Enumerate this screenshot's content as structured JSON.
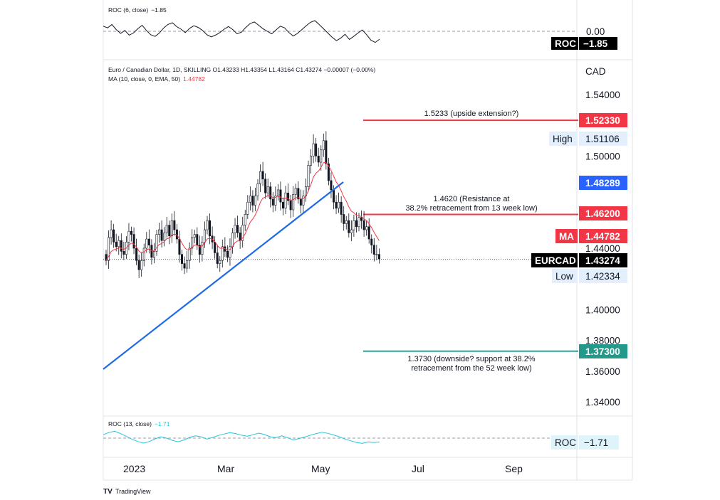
{
  "chart_data": {
    "type": "candlestick",
    "symbol": "EURCAD",
    "legend": {
      "title": "Euro / Canadian Dollar, 1D, SKILLING  O1.43233  H1.43354  L1.43164  C1.43274  −0.00007 (−0.00%)",
      "ma_label": "MA (10, close, 0, EMA, 50)",
      "ma_value": "1.44782"
    },
    "price_axis": {
      "unit": "CAD",
      "ylim": [
        1.32,
        1.56
      ],
      "ticks": [
        "1.54000",
        "1.50000",
        "1.44000",
        "1.40000",
        "1.38000",
        "1.36000",
        "1.34000"
      ]
    },
    "date_axis": {
      "labels": [
        "2023",
        "Mar",
        "May",
        "Jul",
        "Sep"
      ]
    },
    "candles_close_path": [
      1.432,
      1.447,
      1.452,
      1.444,
      1.441,
      1.445,
      1.438,
      1.436,
      1.444,
      1.451,
      1.449,
      1.44,
      1.432,
      1.426,
      1.432,
      1.44,
      1.446,
      1.442,
      1.434,
      1.438,
      1.449,
      1.452,
      1.445,
      1.45,
      1.455,
      1.448,
      1.458,
      1.452,
      1.446,
      1.436,
      1.43,
      1.427,
      1.432,
      1.44,
      1.447,
      1.449,
      1.442,
      1.436,
      1.444,
      1.452,
      1.458,
      1.448,
      1.444,
      1.437,
      1.43,
      1.432,
      1.441,
      1.438,
      1.434,
      1.441,
      1.45,
      1.455,
      1.45,
      1.445,
      1.455,
      1.462,
      1.47,
      1.474,
      1.468,
      1.474,
      1.482,
      1.49,
      1.485,
      1.476,
      1.48,
      1.472,
      1.468,
      1.474,
      1.478,
      1.47,
      1.466,
      1.476,
      1.471,
      1.465,
      1.475,
      1.479,
      1.472,
      1.468,
      1.474,
      1.48,
      1.494,
      1.5,
      1.508,
      1.5,
      1.496,
      1.504,
      1.51,
      1.495,
      1.484,
      1.478,
      1.47,
      1.466,
      1.47,
      1.462,
      1.456,
      1.458,
      1.45,
      1.452,
      1.458,
      1.454,
      1.46,
      1.458,
      1.452,
      1.454,
      1.446,
      1.442,
      1.436,
      1.436,
      1.433
    ],
    "ma": {
      "name": "MA",
      "tag": "1.44782"
    },
    "trendline": {
      "from": [
        "2022-12-19",
        1.36
      ],
      "to": [
        "2023-05-15",
        1.484
      ]
    },
    "horizontal_levels": [
      {
        "price": 1.5233,
        "tag": "1.52330",
        "label": "1.5233 (upside extension?)",
        "color": "#f23645"
      },
      {
        "price": 1.462,
        "tag": "1.46200",
        "label_line1": "1.4620 (Resistance at",
        "label_line2": "38.2% retracement from 13 week low)",
        "color": "#f23645"
      },
      {
        "price": 1.373,
        "tag": "1.37300",
        "label_line1": "1.3730 (downside? support at 38.2%",
        "label_line2": "retracement from the 52 week low)",
        "color": "#26a69a"
      }
    ],
    "price_tags": {
      "high_label": "High",
      "high_value": "1.51106",
      "blue_value": "1.48289",
      "ma_label": "MA",
      "ma_value": "1.44782",
      "last_label": "EURCAD",
      "last_value": "1.43274",
      "low_label": "Low",
      "low_value": "1.42334"
    },
    "roc_top": {
      "legend": "ROC (6, close)",
      "legend_value": "−1.85",
      "zero_label": "0.00",
      "tag_label": "ROC",
      "tag_value": "−1.85",
      "values": [
        1.2,
        0.8,
        1.6,
        0.4,
        -0.5,
        0.2,
        -0.9,
        -0.4,
        0.6,
        1.4,
        0.2,
        -0.8,
        -1.2,
        -0.4,
        0.8,
        1.6,
        2.0,
        1.1,
        0.5,
        -0.3,
        0.7,
        1.3,
        0.9,
        0.2,
        -0.8,
        -1.3,
        -0.9,
        -0.3,
        0.5,
        1.1,
        0.4,
        -0.6,
        -0.2,
        0.9,
        1.8,
        2.2,
        1.4,
        0.6,
        0.0,
        -0.6,
        0.3,
        1.2,
        0.8,
        -0.3,
        -1.1,
        -0.5,
        0.4,
        1.3,
        2.1,
        2.5,
        1.6,
        0.6,
        -0.4,
        -1.4,
        -2.2,
        -1.6,
        -0.7,
        -1.9,
        -1.2,
        -0.4,
        0.3,
        -0.8,
        -2.1,
        -2.6,
        -1.85
      ]
    },
    "roc_bottom": {
      "legend": "ROC (13, close)",
      "legend_value": "−1.71",
      "tag_label": "ROC",
      "tag_value": "−1.71",
      "values": [
        1.5,
        2.5,
        3.0,
        2.0,
        0.8,
        -0.5,
        -1.5,
        -2.2,
        -1.5,
        -0.3,
        0.6,
        0.0,
        -1.0,
        -1.6,
        -0.8,
        0.3,
        1.0,
        0.6,
        -0.4,
        0.3,
        1.2,
        1.8,
        2.4,
        2.0,
        1.3,
        0.8,
        1.5,
        2.2,
        1.6,
        0.6,
        0.2,
        1.0,
        0.2,
        -0.8,
        -0.2,
        0.5,
        1.3,
        2.0,
        2.6,
        2.1,
        1.4,
        0.6,
        -0.4,
        -1.2,
        -1.9,
        -2.3,
        -1.7,
        -1.9,
        -1.71
      ]
    }
  },
  "brand": "TradingView"
}
